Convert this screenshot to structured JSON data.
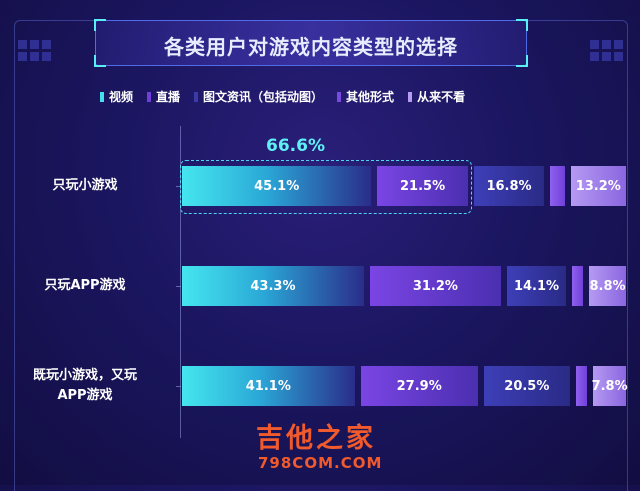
{
  "title": "各类用户对游戏内容类型的选择",
  "legend": [
    {
      "label": "视频",
      "color": "#45e0ec"
    },
    {
      "label": "直播",
      "color": "#6f3fd8"
    },
    {
      "label": "图文资讯（包括动图）",
      "color": "#3a3aa8"
    },
    {
      "label": "其他形式",
      "color": "#7a4ae0"
    },
    {
      "label": "从来不看",
      "color": "#b69cf0"
    }
  ],
  "chart_data": {
    "type": "bar",
    "stacked": true,
    "orientation": "horizontal",
    "categories": [
      "只玩小游戏",
      "只玩APP游戏",
      "既玩小游戏，又玩\nAPP游戏"
    ],
    "series": [
      {
        "name": "视频",
        "values": [
          45.1,
          43.3,
          41.1
        ],
        "labels": [
          "45.1%",
          "43.3%",
          "41.1%"
        ]
      },
      {
        "name": "直播",
        "values": [
          21.5,
          31.2,
          27.9
        ],
        "labels": [
          "21.5%",
          "31.2%",
          "27.9%"
        ]
      },
      {
        "name": "图文资讯（包括动图）",
        "values": [
          16.8,
          14.1,
          20.5
        ],
        "labels": [
          "16.8%",
          "14.1%",
          "20.5%"
        ]
      },
      {
        "name": "其他形式",
        "values": [
          3.4,
          2.6,
          2.7
        ],
        "labels": [
          "",
          "",
          ""
        ]
      },
      {
        "name": "从来不看",
        "values": [
          13.2,
          8.8,
          7.8
        ],
        "labels": [
          "13.2%",
          "8.8%",
          "7.8%"
        ]
      }
    ],
    "annotation": "66.6%",
    "annotation_row": 0,
    "annotation_series": [
      0,
      1
    ]
  },
  "watermark": {
    "title": "吉他之家",
    "url": "798COM.COM"
  }
}
